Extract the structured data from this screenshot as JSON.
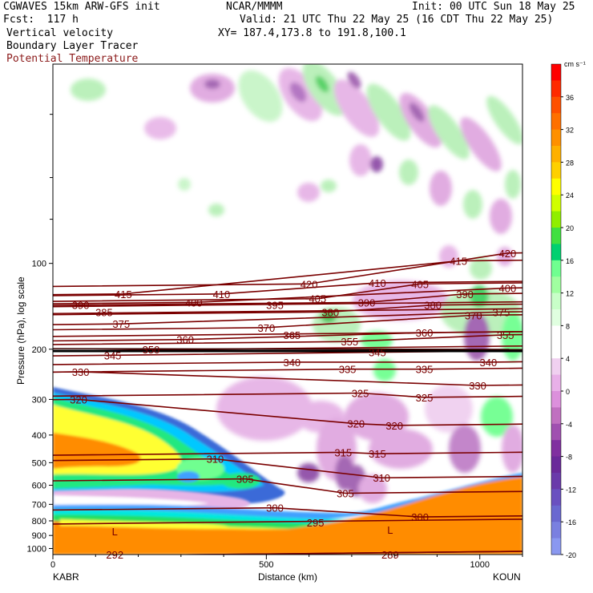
{
  "header": {
    "model": "CGWAVES 15km ARW-GFS init",
    "forecast": "Fcst:  117 h",
    "org": "NCAR/MMMM",
    "init": "Init: 00 UTC Sun 18 May 25",
    "valid": "Valid: 21 UTC Thu 22 May 25 (16 CDT Thu 22 May 25)",
    "xy": "XY= 187.4,173.8 to 191.8,100.1",
    "field1": "Vertical velocity",
    "field2": "Boundary Layer Tracer",
    "field3": "Potential Temperature"
  },
  "colors": {
    "theta_contour": "#7a0000",
    "theta_label": "#8b1a1a"
  },
  "chart_data": {
    "type": "heatmap",
    "ylabel": "Pressure (hPa), log scale",
    "xlabel": "Distance (km)",
    "x_ticks": [
      0,
      500,
      1000
    ],
    "y_ticks": [
      100,
      200,
      300,
      400,
      500,
      600,
      700,
      800,
      900,
      1000
    ],
    "y_scale": "log",
    "xlim": [
      0,
      1100
    ],
    "ylim": [
      1050,
      20
    ],
    "endpoints": {
      "left": "KABR",
      "right": "KOUN"
    },
    "colorbar": {
      "unit": "cm s⁻¹",
      "ticks": [
        36,
        32,
        28,
        24,
        20,
        16,
        12,
        8,
        4,
        0,
        -4,
        -8,
        -12,
        -16,
        -20
      ],
      "colors": [
        "#ff0000",
        "#ff2a00",
        "#ff5000",
        "#ff7000",
        "#ff9000",
        "#ffb000",
        "#ffd000",
        "#ffff00",
        "#d0ff00",
        "#90ee00",
        "#40e040",
        "#00d070",
        "#70ff90",
        "#a0ffa0",
        "#c8ffc8",
        "#e0ffe0",
        "#ffffff",
        "#ffffff",
        "#f0d0f0",
        "#e8b0e8",
        "#dc90dc",
        "#c070c0",
        "#a050b0",
        "#8030a0",
        "#6a2a9a",
        "#6a3aaa",
        "#6a50c0",
        "#6a68d0",
        "#7a80e0",
        "#8a98f0"
      ]
    },
    "theta_contours": [
      {
        "value": 420,
        "labels": [
          [
            600,
            118
          ],
          [
            1065,
            92
          ]
        ]
      },
      {
        "value": 415,
        "labels": [
          [
            165,
            128
          ],
          [
            950,
            98
          ]
        ]
      },
      {
        "value": 410,
        "labels": [
          [
            395,
            128
          ],
          [
            760,
            117
          ]
        ]
      },
      {
        "value": 405,
        "labels": [
          [
            620,
            133
          ],
          [
            860,
            118
          ]
        ]
      },
      {
        "value": 400,
        "labels": [
          [
            330,
            137
          ],
          [
            1065,
            122
          ]
        ]
      },
      {
        "value": 395,
        "labels": [
          [
            520,
            140
          ]
        ]
      },
      {
        "value": 390,
        "labels": [
          [
            65,
            140
          ],
          [
            735,
            137
          ],
          [
            965,
            128
          ]
        ]
      },
      {
        "value": 385,
        "labels": [
          [
            120,
            148
          ]
        ]
      },
      {
        "value": 380,
        "labels": [
          [
            650,
            148
          ],
          [
            890,
            140
          ]
        ]
      },
      {
        "value": 375,
        "labels": [
          [
            160,
            163
          ],
          [
            1050,
            148
          ]
        ]
      },
      {
        "value": 370,
        "labels": [
          [
            500,
            168
          ],
          [
            985,
            152
          ]
        ]
      },
      {
        "value": 365,
        "labels": [
          [
            560,
            178
          ]
        ]
      },
      {
        "value": 360,
        "labels": [
          [
            310,
            185
          ],
          [
            870,
            175
          ]
        ]
      },
      {
        "value": 355,
        "labels": [
          [
            695,
            188
          ],
          [
            1060,
            178
          ]
        ]
      },
      {
        "value": 350,
        "labels": [
          [
            230,
            200
          ]
        ]
      },
      {
        "value": 345,
        "labels": [
          [
            140,
            210
          ],
          [
            760,
            205
          ]
        ]
      },
      {
        "value": 340,
        "labels": [
          [
            560,
            222
          ],
          [
            1020,
            222
          ]
        ]
      },
      {
        "value": 335,
        "labels": [
          [
            690,
            235
          ],
          [
            870,
            235
          ]
        ]
      },
      {
        "value": 330,
        "labels": [
          [
            65,
            240
          ],
          [
            995,
            268
          ]
        ]
      },
      {
        "value": 325,
        "labels": [
          [
            720,
            285
          ],
          [
            870,
            295
          ]
        ]
      },
      {
        "value": 320,
        "labels": [
          [
            60,
            300
          ],
          [
            710,
            365
          ],
          [
            800,
            370
          ]
        ]
      },
      {
        "value": 315,
        "labels": [
          [
            680,
            460
          ],
          [
            760,
            465
          ]
        ]
      },
      {
        "value": 310,
        "labels": [
          [
            380,
            485
          ],
          [
            770,
            565
          ]
        ]
      },
      {
        "value": 305,
        "labels": [
          [
            450,
            570
          ],
          [
            685,
            640
          ]
        ]
      },
      {
        "value": 300,
        "labels": [
          [
            520,
            720
          ],
          [
            860,
            775
          ]
        ]
      },
      {
        "value": 295,
        "labels": [
          [
            615,
            810
          ]
        ]
      },
      {
        "value": 292,
        "labels": [
          [
            145,
            1050
          ]
        ]
      },
      {
        "value": 289,
        "labels": [
          [
            790,
            1050
          ]
        ]
      }
    ],
    "markers": [
      {
        "text": "L",
        "x": 145,
        "p": 870
      },
      {
        "text": "L",
        "x": 790,
        "p": 860
      }
    ]
  }
}
